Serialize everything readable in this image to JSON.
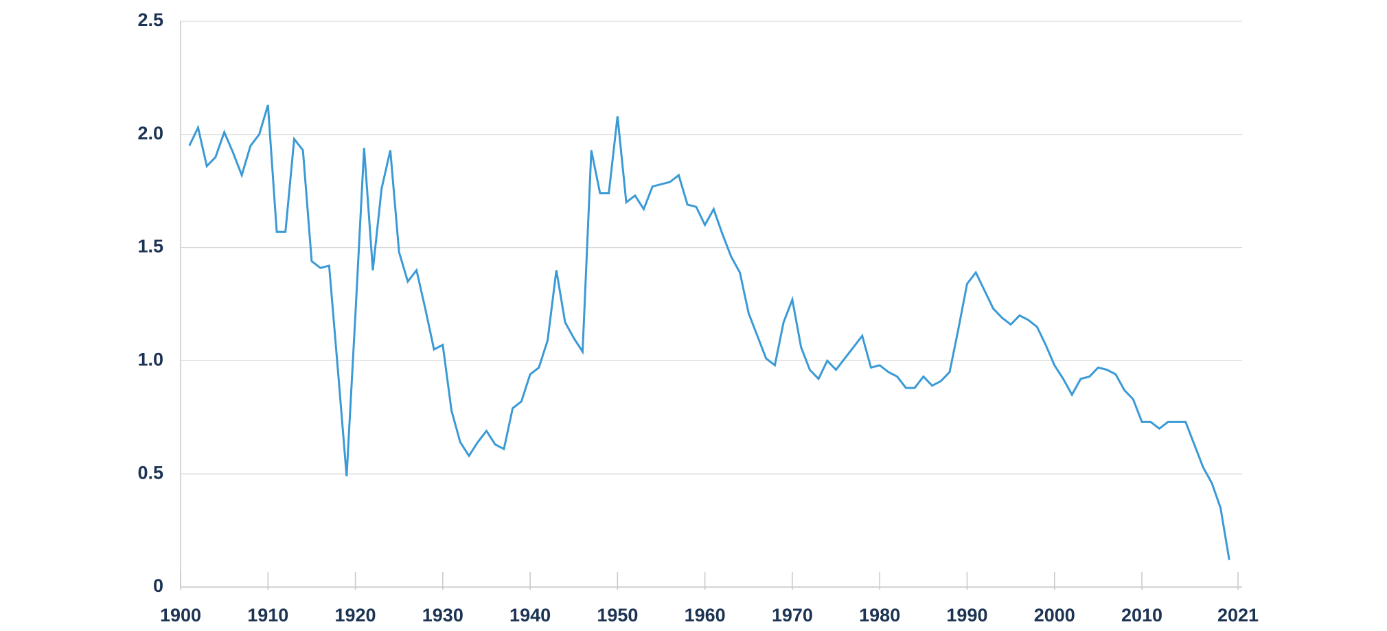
{
  "chart_data": {
    "type": "line",
    "x": [
      1901,
      1902,
      1903,
      1904,
      1905,
      1906,
      1907,
      1908,
      1909,
      1910,
      1911,
      1912,
      1913,
      1914,
      1915,
      1916,
      1917,
      1918,
      1919,
      1920,
      1921,
      1922,
      1923,
      1924,
      1925,
      1926,
      1927,
      1928,
      1929,
      1930,
      1931,
      1932,
      1933,
      1934,
      1935,
      1936,
      1937,
      1938,
      1939,
      1940,
      1941,
      1942,
      1943,
      1944,
      1945,
      1946,
      1947,
      1948,
      1949,
      1950,
      1951,
      1952,
      1953,
      1954,
      1955,
      1956,
      1957,
      1958,
      1959,
      1960,
      1961,
      1962,
      1963,
      1964,
      1965,
      1966,
      1967,
      1968,
      1969,
      1970,
      1971,
      1972,
      1973,
      1974,
      1975,
      1976,
      1977,
      1978,
      1979,
      1980,
      1981,
      1982,
      1983,
      1984,
      1985,
      1986,
      1987,
      1988,
      1989,
      1990,
      1991,
      1992,
      1993,
      1994,
      1995,
      1996,
      1997,
      1998,
      1999,
      2000,
      2001,
      2002,
      2003,
      2004,
      2005,
      2006,
      2007,
      2008,
      2009,
      2010,
      2011,
      2012,
      2013,
      2014,
      2015,
      2016,
      2017,
      2018,
      2019,
      2020
    ],
    "series": [
      {
        "color": "#3a9ad6",
        "values": [
          1.95,
          2.03,
          1.86,
          1.9,
          2.01,
          1.92,
          1.82,
          1.95,
          2.0,
          2.13,
          1.57,
          1.57,
          1.98,
          1.93,
          1.44,
          1.41,
          1.42,
          0.96,
          0.49,
          1.2,
          1.94,
          1.4,
          1.76,
          1.93,
          1.48,
          1.35,
          1.4,
          1.23,
          1.05,
          1.07,
          0.78,
          0.64,
          0.58,
          0.64,
          0.69,
          0.63,
          0.61,
          0.79,
          0.82,
          0.94,
          0.97,
          1.09,
          1.4,
          1.17,
          1.1,
          1.04,
          1.93,
          1.74,
          1.74,
          2.08,
          1.7,
          1.73,
          1.67,
          1.77,
          1.78,
          1.79,
          1.82,
          1.69,
          1.68,
          1.6,
          1.67,
          1.56,
          1.46,
          1.39,
          1.21,
          1.11,
          1.01,
          0.98,
          1.17,
          1.27,
          1.06,
          0.96,
          0.92,
          1.0,
          0.96,
          1.01,
          1.06,
          1.11,
          0.97,
          0.98,
          0.95,
          0.93,
          0.88,
          0.88,
          0.93,
          0.89,
          0.91,
          0.95,
          1.14,
          1.34,
          1.39,
          1.31,
          1.23,
          1.19,
          1.16,
          1.2,
          1.18,
          1.15,
          1.07,
          0.98,
          0.92,
          0.85,
          0.92,
          0.93,
          0.97,
          0.96,
          0.94,
          0.87,
          0.83,
          0.73,
          0.73,
          0.7,
          0.73,
          0.73,
          0.73,
          0.63,
          0.53,
          0.46,
          0.35,
          0.12
        ]
      }
    ],
    "xlim": [
      1900,
      2021
    ],
    "xticks": [
      1900,
      1910,
      1920,
      1930,
      1940,
      1950,
      1960,
      1970,
      1980,
      1990,
      2000,
      2010,
      2021
    ],
    "ylim": [
      0,
      2.5
    ],
    "yticks": [
      0,
      0.5,
      {
        "value": 1,
        "label": "1.0"
      },
      1.5,
      {
        "value": 2,
        "label": "2.0"
      },
      2.5
    ],
    "grid": true
  }
}
